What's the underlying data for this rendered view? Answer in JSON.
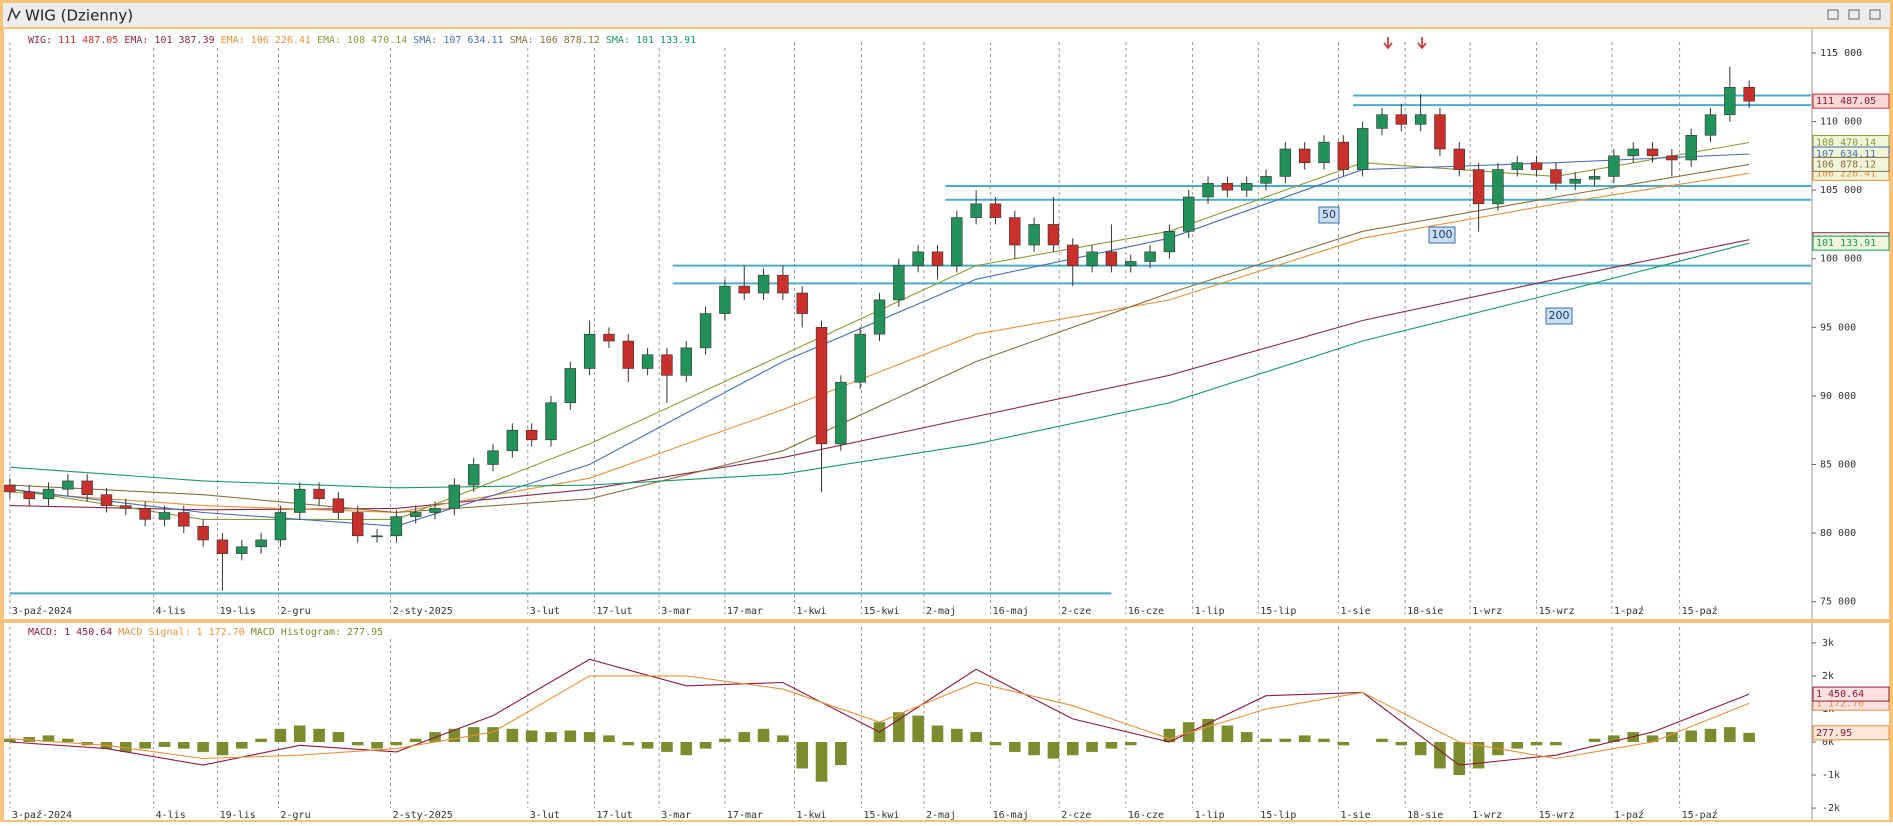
{
  "chart_data": [
    {
      "type": "candlestick",
      "title": "WIG (Dzienny)",
      "name": "WIG:",
      "close_label": "111 487.05",
      "up_color": "#23915a",
      "down_color": "#c9302c",
      "open": [
        83500,
        83000,
        82500,
        83200,
        83800,
        82800,
        82000,
        81800,
        81000,
        81500,
        80500,
        79500,
        78500,
        79000,
        79500,
        81500,
        83200,
        82500,
        81500,
        79800,
        79800,
        81200,
        81500,
        81800,
        83500,
        85000,
        86000,
        87500,
        86800,
        89500,
        92000,
        94500,
        94000,
        92000,
        93000,
        91500,
        93500,
        96000,
        98000,
        97500,
        98800,
        97500,
        95000,
        86500,
        91000,
        94500,
        97000,
        99500,
        100500,
        99500,
        103000,
        104000,
        103000,
        101000,
        102500,
        101000,
        99500,
        100500,
        99500,
        99800,
        100500,
        102000,
        104500,
        105500,
        105000,
        105500,
        106000,
        108000,
        107000,
        108500,
        106500,
        109500,
        110500,
        109800,
        110500,
        108000,
        106500,
        104000,
        106500,
        107000,
        106500,
        105500,
        105800,
        106000,
        107500,
        108000,
        107500,
        107200,
        109000,
        110500,
        112500
      ],
      "high": [
        84000,
        83500,
        83700,
        84300,
        84300,
        83300,
        82500,
        82300,
        82000,
        82000,
        81000,
        80000,
        79500,
        80000,
        82000,
        83700,
        83700,
        83000,
        82000,
        80300,
        81700,
        82000,
        82300,
        84000,
        85500,
        86500,
        88000,
        88000,
        90000,
        92500,
        95500,
        95000,
        94500,
        93500,
        93500,
        94000,
        96500,
        98500,
        99500,
        99300,
        99500,
        98000,
        95500,
        91500,
        95000,
        97500,
        100000,
        101000,
        101000,
        103500,
        105000,
        104500,
        103500,
        103000,
        104500,
        101500,
        101000,
        102500,
        100300,
        101000,
        102500,
        105000,
        106000,
        106000,
        106000,
        106500,
        108500,
        108500,
        109000,
        109000,
        110000,
        111000,
        111300,
        112000,
        111000,
        108500,
        107000,
        107000,
        107500,
        107500,
        107000,
        106300,
        106500,
        108000,
        108500,
        108500,
        108000,
        109500,
        111000,
        114000,
        113000
      ],
      "low": [
        82500,
        82000,
        82000,
        82700,
        82300,
        81500,
        81300,
        80500,
        80500,
        80000,
        79000,
        75800,
        78000,
        78500,
        79000,
        81000,
        82000,
        81000,
        79300,
        79300,
        79300,
        80700,
        81000,
        81300,
        83000,
        84500,
        85500,
        86300,
        86300,
        89000,
        91500,
        93500,
        91000,
        91500,
        89500,
        91000,
        93000,
        95500,
        97000,
        97000,
        97000,
        95000,
        83000,
        86000,
        90500,
        94000,
        96500,
        99000,
        98500,
        99000,
        102500,
        102500,
        100000,
        100500,
        100500,
        98000,
        99000,
        99000,
        99000,
        99300,
        100000,
        101500,
        104000,
        104500,
        104500,
        105000,
        105500,
        106500,
        106500,
        106000,
        106000,
        109000,
        109300,
        109300,
        107500,
        106000,
        102000,
        103500,
        106000,
        106000,
        105000,
        105000,
        105300,
        105500,
        107000,
        107000,
        106000,
        106700,
        108500,
        110000,
        111000
      ],
      "close": [
        83000,
        82500,
        83200,
        83800,
        82800,
        82000,
        81800,
        81000,
        81500,
        80500,
        79500,
        78500,
        79000,
        79500,
        81500,
        83200,
        82500,
        81500,
        79800,
        79800,
        81200,
        81500,
        81800,
        83500,
        85000,
        86000,
        87500,
        86800,
        89500,
        92000,
        94500,
        94000,
        92000,
        93000,
        91500,
        93500,
        96000,
        98000,
        97500,
        98800,
        97500,
        96000,
        86500,
        91000,
        94500,
        97000,
        99500,
        100500,
        99500,
        103000,
        104000,
        103000,
        101000,
        102500,
        101000,
        99500,
        100500,
        99500,
        99800,
        100500,
        102000,
        104500,
        105500,
        105000,
        105500,
        106000,
        108000,
        107000,
        108500,
        106500,
        109500,
        110500,
        109800,
        110500,
        108000,
        106500,
        104000,
        106500,
        107000,
        106500,
        105500,
        105800,
        106000,
        107500,
        108000,
        107500,
        107200,
        109000,
        110500,
        112500,
        111487.05
      ],
      "series": [
        {
          "name": "EMA:",
          "color": "#8b2a4a",
          "last_label": "101 387.39",
          "x": [
            0,
            10,
            20,
            30,
            40,
            50,
            60,
            70,
            80,
            90
          ],
          "values": [
            82000,
            81700,
            81800,
            83200,
            85500,
            88500,
            91500,
            95500,
            98500,
            101387.39
          ]
        },
        {
          "name": "EMA:",
          "color": "#e8903a",
          "last_label": "106 226.41",
          "x": [
            0,
            10,
            20,
            30,
            40,
            50,
            60,
            70,
            80,
            90
          ],
          "values": [
            83000,
            82000,
            81500,
            84000,
            89000,
            94500,
            97000,
            101500,
            104000,
            106226.41
          ]
        },
        {
          "name": "EMA:",
          "color": "#8a9a3a",
          "last_label": "108 470.14",
          "x": [
            0,
            10,
            20,
            30,
            40,
            50,
            60,
            70,
            80,
            90
          ],
          "values": [
            83200,
            81000,
            81000,
            86500,
            93000,
            99500,
            102000,
            107000,
            106000,
            108470.14
          ]
        },
        {
          "name": "SMA:",
          "color": "#4a6fb5",
          "last_label": "107 634.11",
          "x": [
            0,
            10,
            20,
            30,
            40,
            50,
            60,
            70,
            80,
            90
          ],
          "values": [
            83200,
            81500,
            80500,
            85000,
            92500,
            98500,
            101500,
            106500,
            107000,
            107634.11
          ]
        },
        {
          "name": "SMA:",
          "color": "#8a7040",
          "last_label": "106 878.12",
          "x": [
            0,
            10,
            20,
            30,
            40,
            50,
            60,
            70,
            80,
            90
          ],
          "values": [
            83500,
            82800,
            81500,
            82500,
            86000,
            92500,
            97500,
            102000,
            104500,
            106878.12
          ]
        },
        {
          "name": "SMA:",
          "color": "#1a9a60",
          "last_label": "101 133.91",
          "x": [
            0,
            10,
            20,
            30,
            40,
            50,
            60,
            70,
            80,
            90
          ],
          "values": [
            84800,
            83800,
            83300,
            83500,
            84300,
            86500,
            89500,
            94000,
            97500,
            101133.91
          ]
        }
      ],
      "levels": [
        {
          "value": 111900,
          "start": 69.5
        },
        {
          "value": 111200,
          "start": 69.5
        },
        {
          "value": 105300,
          "start": 48.4
        },
        {
          "value": 104300,
          "start": 48.4
        },
        {
          "value": 99500,
          "start": 34.3
        },
        {
          "value": 98200,
          "start": 34.3
        }
      ],
      "base_level": {
        "value": 75600,
        "start": 0,
        "end": 57
      },
      "level_color": "#4bacc6",
      "annotations": [
        "50",
        "100",
        "200"
      ],
      "xlim": [
        -0.2,
        93.2
      ],
      "xticks": [
        {
          "value": 0,
          "label": "3-paź-2024"
        },
        {
          "value": 7.44,
          "label": "4-lis"
        },
        {
          "value": 10.75,
          "label": "19-lis"
        },
        {
          "value": 13.9,
          "label": "2-gru"
        },
        {
          "value": 19.7,
          "label": "2-sty-2025"
        },
        {
          "value": 26.8,
          "label": "3-lut"
        },
        {
          "value": 30.25,
          "label": "17-lut"
        },
        {
          "value": 33.6,
          "label": "3-mar"
        },
        {
          "value": 37,
          "label": "17-mar"
        },
        {
          "value": 40.6,
          "label": "1-kwi"
        },
        {
          "value": 44.06,
          "label": "15-kwi"
        },
        {
          "value": 47.3,
          "label": "2-maj"
        },
        {
          "value": 50.75,
          "label": "16-maj"
        },
        {
          "value": 54.3,
          "label": "2-cze"
        },
        {
          "value": 57.75,
          "label": "16-cze"
        },
        {
          "value": 61.2,
          "label": "1-lip"
        },
        {
          "value": 64.6,
          "label": "15-lip"
        },
        {
          "value": 68.75,
          "label": "1-sie"
        },
        {
          "value": 72.2,
          "label": "18-sie"
        },
        {
          "value": 75.56,
          "label": "1-wrz"
        },
        {
          "value": 79,
          "label": "15-wrz"
        },
        {
          "value": 82.9,
          "label": "1-paź"
        },
        {
          "value": 86.4,
          "label": "15-paź"
        }
      ],
      "ylim": [
        74100,
        115800
      ],
      "yticks": [
        {
          "value": 75000,
          "label": "75 000"
        },
        {
          "value": 80000,
          "label": "80 000"
        },
        {
          "value": 85000,
          "label": "85 000"
        },
        {
          "value": 90000,
          "label": "90 000"
        },
        {
          "value": 95000,
          "label": "95 000"
        },
        {
          "value": 100000,
          "label": "100 000"
        },
        {
          "value": 105000,
          "label": "105 000"
        },
        {
          "value": 110000,
          "label": "110 000"
        },
        {
          "value": 115000,
          "label": "115 000"
        }
      ]
    },
    {
      "type": "macd",
      "series": [
        {
          "name": "MACD:",
          "color": "#8b1a3a",
          "last_label": "1 450.64",
          "x": [
            0,
            5,
            10,
            15,
            20,
            25,
            30,
            35,
            40,
            45,
            50,
            55,
            60,
            65,
            70,
            75,
            80,
            85,
            90
          ],
          "values": [
            0,
            -200,
            -700,
            -100,
            -300,
            800,
            2500,
            1700,
            1800,
            300,
            2200,
            700,
            0,
            1400,
            1500,
            -700,
            -400,
            300,
            1450.64
          ]
        },
        {
          "name": "MACD Signal:",
          "color": "#e8903a",
          "last_label": "1 172.70",
          "x": [
            0,
            5,
            10,
            15,
            20,
            25,
            30,
            35,
            40,
            45,
            50,
            55,
            60,
            65,
            70,
            75,
            80,
            85,
            90
          ],
          "values": [
            100,
            -100,
            -500,
            -400,
            -200,
            300,
            2000,
            2000,
            1600,
            600,
            1800,
            1100,
            100,
            1000,
            1500,
            0,
            -500,
            0,
            1172.7
          ]
        }
      ],
      "histogram": {
        "name": "MACD Histogram:",
        "color": "#7a8c2e",
        "last_label": "277.95",
        "values": [
          100,
          150,
          200,
          100,
          -100,
          -200,
          -300,
          -200,
          -150,
          -200,
          -300,
          -400,
          -200,
          100,
          400,
          500,
          400,
          300,
          -100,
          -200,
          -100,
          100,
          300,
          400,
          450,
          450,
          400,
          350,
          300,
          350,
          300,
          200,
          -100,
          -200,
          -300,
          -400,
          -200,
          100,
          300,
          400,
          200,
          -800,
          -1200,
          -700,
          0,
          600,
          900,
          800,
          500,
          400,
          300,
          -100,
          -300,
          -400,
          -500,
          -400,
          -300,
          -200,
          -100,
          0,
          400,
          600,
          700,
          500,
          300,
          100,
          100,
          200,
          100,
          -100,
          0,
          100,
          -100,
          -400,
          -800,
          -1000,
          -800,
          -400,
          -200,
          -100,
          -100,
          0,
          100,
          200,
          300,
          200,
          300,
          350,
          400,
          450,
          277.95
        ]
      },
      "ylim": [
        -2360,
        3480
      ],
      "yticks": [
        {
          "value": -2000,
          "label": "-2k"
        },
        {
          "value": -1000,
          "label": "-1k"
        },
        {
          "value": 0,
          "label": "0k"
        },
        {
          "value": 1000,
          "label": "1k"
        },
        {
          "value": 2000,
          "label": "2k"
        },
        {
          "value": 3000,
          "label": "3k"
        }
      ]
    }
  ]
}
